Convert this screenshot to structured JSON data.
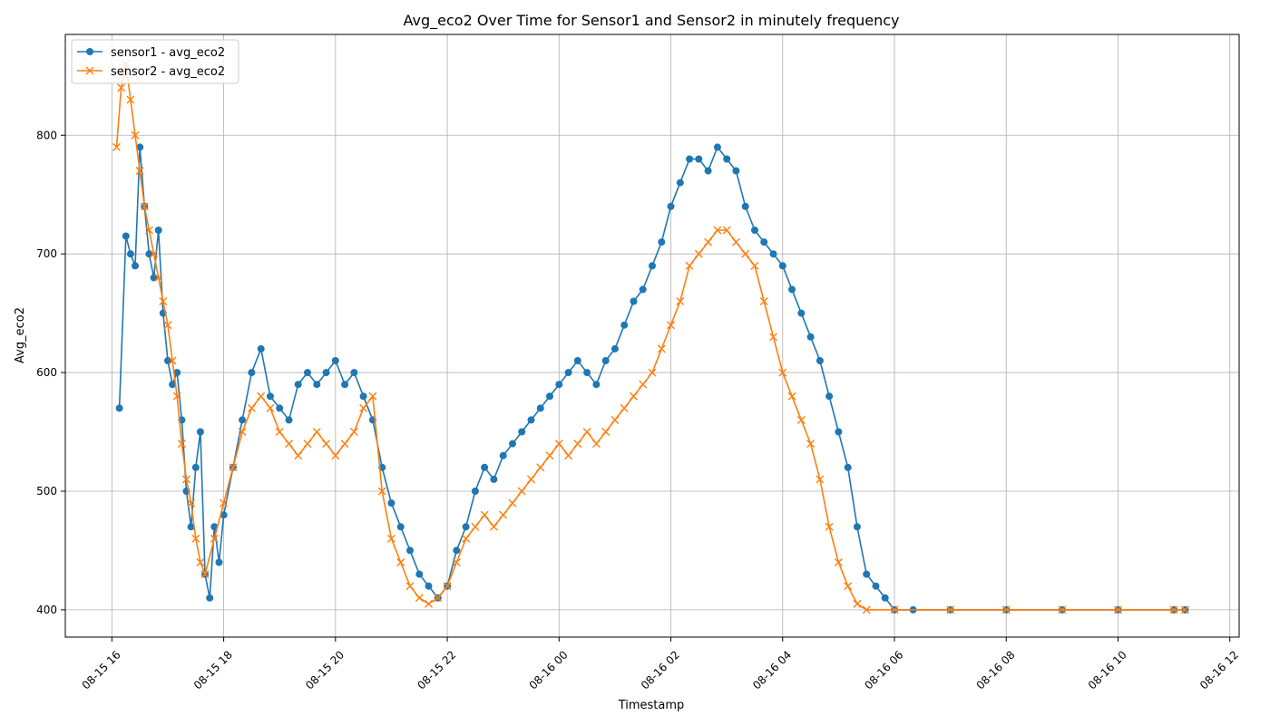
{
  "chart_data": {
    "type": "line",
    "title": "Avg_eco2 Over Time for Sensor1 and Sensor2 in minutely frequency",
    "xlabel": "Timestamp",
    "ylabel": "Avg_eco2",
    "x_range": [
      "2024-08-15T15:10",
      "2024-08-16T12:10"
    ],
    "ylim": [
      377,
      885
    ],
    "x_ticks": [
      {
        "t": "2024-08-15T16:00",
        "label": "08-15 16"
      },
      {
        "t": "2024-08-15T18:00",
        "label": "08-15 18"
      },
      {
        "t": "2024-08-15T20:00",
        "label": "08-15 20"
      },
      {
        "t": "2024-08-15T22:00",
        "label": "08-15 22"
      },
      {
        "t": "2024-08-16T00:00",
        "label": "08-16 00"
      },
      {
        "t": "2024-08-16T02:00",
        "label": "08-16 02"
      },
      {
        "t": "2024-08-16T04:00",
        "label": "08-16 04"
      },
      {
        "t": "2024-08-16T06:00",
        "label": "08-16 06"
      },
      {
        "t": "2024-08-16T08:00",
        "label": "08-16 08"
      },
      {
        "t": "2024-08-16T10:00",
        "label": "08-16 10"
      },
      {
        "t": "2024-08-16T12:00",
        "label": "08-16 12"
      }
    ],
    "y_ticks": [
      400,
      500,
      600,
      700,
      800
    ],
    "grid": true,
    "legend_position": "top-left",
    "series": [
      {
        "name": "sensor1 - avg_eco2",
        "color": "#1f77b4",
        "marker": "circle",
        "x": [
          "2024-08-15T16:08",
          "2024-08-15T16:15",
          "2024-08-15T16:20",
          "2024-08-15T16:25",
          "2024-08-15T16:30",
          "2024-08-15T16:35",
          "2024-08-15T16:40",
          "2024-08-15T16:45",
          "2024-08-15T16:50",
          "2024-08-15T16:55",
          "2024-08-15T17:00",
          "2024-08-15T17:05",
          "2024-08-15T17:10",
          "2024-08-15T17:15",
          "2024-08-15T17:20",
          "2024-08-15T17:25",
          "2024-08-15T17:30",
          "2024-08-15T17:35",
          "2024-08-15T17:40",
          "2024-08-15T17:45",
          "2024-08-15T17:50",
          "2024-08-15T17:55",
          "2024-08-15T18:00",
          "2024-08-15T18:10",
          "2024-08-15T18:20",
          "2024-08-15T18:30",
          "2024-08-15T18:40",
          "2024-08-15T18:50",
          "2024-08-15T19:00",
          "2024-08-15T19:10",
          "2024-08-15T19:20",
          "2024-08-15T19:30",
          "2024-08-15T19:40",
          "2024-08-15T19:50",
          "2024-08-15T20:00",
          "2024-08-15T20:10",
          "2024-08-15T20:20",
          "2024-08-15T20:30",
          "2024-08-15T20:40",
          "2024-08-15T20:50",
          "2024-08-15T21:00",
          "2024-08-15T21:10",
          "2024-08-15T21:20",
          "2024-08-15T21:30",
          "2024-08-15T21:40",
          "2024-08-15T21:50",
          "2024-08-15T22:00",
          "2024-08-15T22:10",
          "2024-08-15T22:20",
          "2024-08-15T22:30",
          "2024-08-15T22:40",
          "2024-08-15T22:50",
          "2024-08-15T23:00",
          "2024-08-15T23:10",
          "2024-08-15T23:20",
          "2024-08-15T23:30",
          "2024-08-15T23:40",
          "2024-08-15T23:50",
          "2024-08-16T00:00",
          "2024-08-16T00:10",
          "2024-08-16T00:20",
          "2024-08-16T00:30",
          "2024-08-16T00:40",
          "2024-08-16T00:50",
          "2024-08-16T01:00",
          "2024-08-16T01:10",
          "2024-08-16T01:20",
          "2024-08-16T01:30",
          "2024-08-16T01:40",
          "2024-08-16T01:50",
          "2024-08-16T02:00",
          "2024-08-16T02:10",
          "2024-08-16T02:20",
          "2024-08-16T02:30",
          "2024-08-16T02:40",
          "2024-08-16T02:50",
          "2024-08-16T03:00",
          "2024-08-16T03:10",
          "2024-08-16T03:20",
          "2024-08-16T03:30",
          "2024-08-16T03:40",
          "2024-08-16T03:50",
          "2024-08-16T04:00",
          "2024-08-16T04:10",
          "2024-08-16T04:20",
          "2024-08-16T04:30",
          "2024-08-16T04:40",
          "2024-08-16T04:50",
          "2024-08-16T05:00",
          "2024-08-16T05:10",
          "2024-08-16T05:20",
          "2024-08-16T05:30",
          "2024-08-16T05:40",
          "2024-08-16T05:50",
          "2024-08-16T06:00",
          "2024-08-16T06:20",
          "2024-08-16T07:00",
          "2024-08-16T08:00",
          "2024-08-16T09:00",
          "2024-08-16T10:00",
          "2024-08-16T11:00",
          "2024-08-16T11:12"
        ],
        "y": [
          570,
          715,
          700,
          690,
          790,
          740,
          700,
          680,
          720,
          650,
          610,
          590,
          600,
          560,
          500,
          470,
          520,
          550,
          430,
          410,
          470,
          440,
          480,
          520,
          560,
          600,
          620,
          580,
          570,
          560,
          590,
          600,
          590,
          600,
          610,
          590,
          600,
          580,
          560,
          520,
          490,
          470,
          450,
          430,
          420,
          410,
          420,
          450,
          470,
          500,
          520,
          510,
          530,
          540,
          550,
          560,
          570,
          580,
          590,
          600,
          610,
          600,
          590,
          610,
          620,
          640,
          660,
          670,
          690,
          710,
          740,
          760,
          780,
          780,
          770,
          790,
          780,
          770,
          740,
          720,
          710,
          700,
          690,
          670,
          650,
          630,
          610,
          580,
          550,
          520,
          470,
          430,
          420,
          410,
          400,
          400,
          400,
          400,
          400,
          400,
          400,
          400
        ]
      },
      {
        "name": "sensor2 - avg_eco2",
        "color": "#ff7f0e",
        "marker": "x",
        "x": [
          "2024-08-15T16:05",
          "2024-08-15T16:10",
          "2024-08-15T16:15",
          "2024-08-15T16:20",
          "2024-08-15T16:25",
          "2024-08-15T16:30",
          "2024-08-15T16:35",
          "2024-08-15T16:40",
          "2024-08-15T16:45",
          "2024-08-15T16:50",
          "2024-08-15T16:55",
          "2024-08-15T17:00",
          "2024-08-15T17:05",
          "2024-08-15T17:10",
          "2024-08-15T17:15",
          "2024-08-15T17:20",
          "2024-08-15T17:25",
          "2024-08-15T17:30",
          "2024-08-15T17:35",
          "2024-08-15T17:40",
          "2024-08-15T17:50",
          "2024-08-15T18:00",
          "2024-08-15T18:10",
          "2024-08-15T18:20",
          "2024-08-15T18:30",
          "2024-08-15T18:40",
          "2024-08-15T18:50",
          "2024-08-15T19:00",
          "2024-08-15T19:10",
          "2024-08-15T19:20",
          "2024-08-15T19:30",
          "2024-08-15T19:40",
          "2024-08-15T19:50",
          "2024-08-15T20:00",
          "2024-08-15T20:10",
          "2024-08-15T20:20",
          "2024-08-15T20:30",
          "2024-08-15T20:40",
          "2024-08-15T20:50",
          "2024-08-15T21:00",
          "2024-08-15T21:10",
          "2024-08-15T21:20",
          "2024-08-15T21:30",
          "2024-08-15T21:40",
          "2024-08-15T21:50",
          "2024-08-15T22:00",
          "2024-08-15T22:10",
          "2024-08-15T22:20",
          "2024-08-15T22:30",
          "2024-08-15T22:40",
          "2024-08-15T22:50",
          "2024-08-15T23:00",
          "2024-08-15T23:10",
          "2024-08-15T23:20",
          "2024-08-15T23:30",
          "2024-08-15T23:40",
          "2024-08-15T23:50",
          "2024-08-16T00:00",
          "2024-08-16T00:10",
          "2024-08-16T00:20",
          "2024-08-16T00:30",
          "2024-08-16T00:40",
          "2024-08-16T00:50",
          "2024-08-16T01:00",
          "2024-08-16T01:10",
          "2024-08-16T01:20",
          "2024-08-16T01:30",
          "2024-08-16T01:40",
          "2024-08-16T01:50",
          "2024-08-16T02:00",
          "2024-08-16T02:10",
          "2024-08-16T02:20",
          "2024-08-16T02:30",
          "2024-08-16T02:40",
          "2024-08-16T02:50",
          "2024-08-16T03:00",
          "2024-08-16T03:10",
          "2024-08-16T03:20",
          "2024-08-16T03:30",
          "2024-08-16T03:40",
          "2024-08-16T03:50",
          "2024-08-16T04:00",
          "2024-08-16T04:10",
          "2024-08-16T04:20",
          "2024-08-16T04:30",
          "2024-08-16T04:40",
          "2024-08-16T04:50",
          "2024-08-16T05:00",
          "2024-08-16T05:10",
          "2024-08-16T05:20",
          "2024-08-16T05:30",
          "2024-08-16T06:00",
          "2024-08-16T07:00",
          "2024-08-16T08:00",
          "2024-08-16T09:00",
          "2024-08-16T10:00",
          "2024-08-16T11:00",
          "2024-08-16T11:12"
        ],
        "y": [
          790,
          840,
          860,
          830,
          800,
          770,
          740,
          720,
          700,
          680,
          660,
          640,
          610,
          580,
          540,
          510,
          490,
          460,
          440,
          430,
          460,
          490,
          520,
          550,
          570,
          580,
          570,
          550,
          540,
          530,
          540,
          550,
          540,
          530,
          540,
          550,
          570,
          580,
          500,
          460,
          440,
          420,
          410,
          405,
          410,
          420,
          440,
          460,
          470,
          480,
          470,
          480,
          490,
          500,
          510,
          520,
          530,
          540,
          530,
          540,
          550,
          540,
          550,
          560,
          570,
          580,
          590,
          600,
          620,
          640,
          660,
          690,
          700,
          710,
          720,
          720,
          710,
          700,
          690,
          660,
          630,
          600,
          580,
          560,
          540,
          510,
          470,
          440,
          420,
          405,
          400,
          400,
          400,
          400,
          400,
          400,
          400,
          400
        ]
      }
    ]
  }
}
